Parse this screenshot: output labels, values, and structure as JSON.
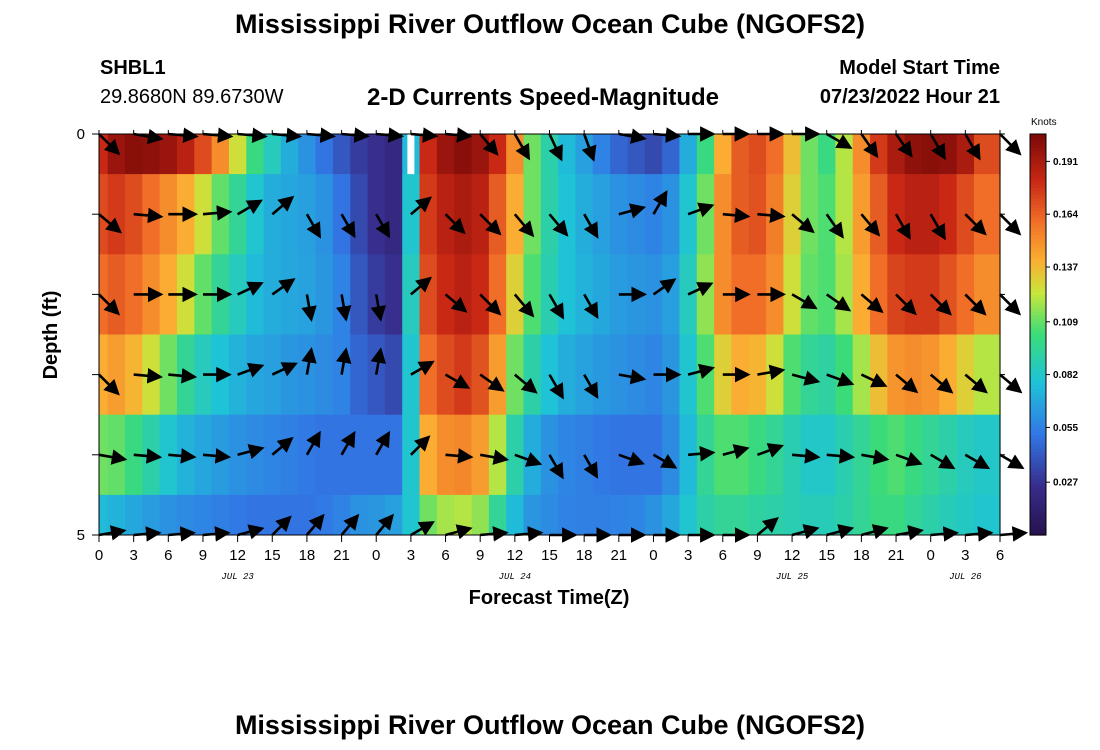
{
  "header": {
    "title": "Mississippi River Outflow Ocean Cube (NGOFS2)",
    "station_id": "SHBL1",
    "coordinates": "29.8680N  89.6730W",
    "subtitle": "2-D Currents Speed-Magnitude",
    "model_start_label": "Model Start Time",
    "model_start_value": "07/23/2022 Hour 21"
  },
  "footer": {
    "title": "Mississippi River Outflow Ocean Cube (NGOFS2)"
  },
  "chart_data": {
    "type": "heatmap",
    "title": "2-D Currents Speed-Magnitude",
    "xlabel": "Forecast Time(Z)",
    "ylabel": "Depth (ft)",
    "x_start_hour": 0,
    "x_end_hour": 78,
    "x_tick_step_hours": 3,
    "x_tick_labels": [
      "0",
      "3",
      "6",
      "9",
      "12",
      "15",
      "18",
      "21",
      "0",
      "3",
      "6",
      "9",
      "12",
      "15",
      "18",
      "21",
      "0",
      "3",
      "6",
      "9",
      "12",
      "15",
      "18",
      "21",
      "0",
      "3",
      "6"
    ],
    "date_labels": [
      {
        "label": "JUL 23",
        "hour": 12
      },
      {
        "label": "JUL 24",
        "hour": 36
      },
      {
        "label": "JUL 25",
        "hour": 60
      },
      {
        "label": "JUL 26",
        "hour": 75
      }
    ],
    "y_range": [
      0,
      5
    ],
    "y_tick_labels": [
      "0",
      "5"
    ],
    "colorbar": {
      "unit": "Knots",
      "range": [
        0.0,
        0.205
      ],
      "tick_values": [
        0.191,
        0.164,
        0.137,
        0.109,
        0.082,
        0.055,
        0.027
      ],
      "tick_labels": [
        "0.191",
        "0.164",
        "0.137",
        "0.109",
        "0.082",
        "0.055",
        "0.027"
      ]
    },
    "row_depths_ft": [
      0,
      1,
      2,
      3,
      4,
      5
    ],
    "column_hours": [
      0,
      1.5,
      3,
      4.5,
      6,
      7.5,
      9,
      10.5,
      12,
      13.5,
      15,
      16.5,
      18,
      19.5,
      21,
      22.5,
      24,
      25.5,
      27,
      28.5,
      30,
      31.5,
      33,
      34.5,
      36,
      37.5,
      39,
      40.5,
      42,
      43.5,
      45,
      46.5,
      48,
      49.5,
      51,
      52.5,
      54,
      55.5,
      57,
      58.5,
      60,
      61.5,
      63,
      64.5,
      66,
      67.5,
      69,
      70.5,
      72,
      73.5,
      75,
      76.5
    ],
    "speed_knots": [
      [
        0.18,
        0.195,
        0.2,
        0.198,
        0.195,
        0.185,
        0.17,
        0.15,
        0.125,
        0.1,
        0.085,
        0.07,
        0.06,
        0.05,
        0.04,
        0.03,
        0.025,
        0.02,
        0.075,
        0.18,
        0.195,
        0.2,
        0.195,
        0.18,
        0.15,
        0.11,
        0.09,
        0.075,
        0.065,
        0.055,
        0.045,
        0.04,
        0.035,
        0.045,
        0.07,
        0.1,
        0.14,
        0.165,
        0.17,
        0.16,
        0.135,
        0.11,
        0.1,
        0.12,
        0.15,
        0.175,
        0.19,
        0.198,
        0.2,
        0.198,
        0.19,
        0.17
      ],
      [
        0.17,
        0.175,
        0.17,
        0.16,
        0.15,
        0.14,
        0.125,
        0.108,
        0.095,
        0.08,
        0.07,
        0.068,
        0.065,
        0.06,
        0.05,
        0.035,
        0.025,
        0.02,
        0.08,
        0.175,
        0.185,
        0.19,
        0.185,
        0.165,
        0.14,
        0.11,
        0.09,
        0.078,
        0.07,
        0.065,
        0.06,
        0.058,
        0.055,
        0.06,
        0.08,
        0.11,
        0.15,
        0.165,
        0.168,
        0.155,
        0.13,
        0.11,
        0.105,
        0.12,
        0.145,
        0.165,
        0.18,
        0.185,
        0.185,
        0.18,
        0.17,
        0.16
      ],
      [
        0.16,
        0.165,
        0.16,
        0.15,
        0.14,
        0.125,
        0.108,
        0.095,
        0.085,
        0.075,
        0.07,
        0.068,
        0.066,
        0.062,
        0.055,
        0.04,
        0.03,
        0.025,
        0.085,
        0.17,
        0.18,
        0.185,
        0.18,
        0.16,
        0.13,
        0.105,
        0.088,
        0.078,
        0.072,
        0.068,
        0.064,
        0.062,
        0.06,
        0.065,
        0.085,
        0.115,
        0.15,
        0.16,
        0.16,
        0.15,
        0.125,
        0.108,
        0.105,
        0.118,
        0.14,
        0.16,
        0.172,
        0.175,
        0.175,
        0.168,
        0.16,
        0.15
      ],
      [
        0.14,
        0.145,
        0.138,
        0.125,
        0.11,
        0.095,
        0.085,
        0.078,
        0.072,
        0.068,
        0.065,
        0.062,
        0.06,
        0.058,
        0.055,
        0.045,
        0.04,
        0.035,
        0.08,
        0.16,
        0.17,
        0.175,
        0.168,
        0.145,
        0.11,
        0.09,
        0.078,
        0.07,
        0.066,
        0.063,
        0.06,
        0.058,
        0.056,
        0.062,
        0.08,
        0.105,
        0.13,
        0.14,
        0.138,
        0.125,
        0.105,
        0.095,
        0.092,
        0.102,
        0.118,
        0.135,
        0.148,
        0.15,
        0.148,
        0.14,
        0.13,
        0.12
      ],
      [
        0.11,
        0.108,
        0.1,
        0.09,
        0.08,
        0.072,
        0.068,
        0.064,
        0.06,
        0.058,
        0.056,
        0.054,
        0.052,
        0.05,
        0.05,
        0.05,
        0.05,
        0.05,
        0.08,
        0.14,
        0.15,
        0.152,
        0.145,
        0.12,
        0.09,
        0.07,
        0.06,
        0.056,
        0.054,
        0.052,
        0.05,
        0.05,
        0.05,
        0.058,
        0.075,
        0.095,
        0.105,
        0.105,
        0.1,
        0.095,
        0.088,
        0.082,
        0.082,
        0.088,
        0.095,
        0.102,
        0.105,
        0.1,
        0.095,
        0.09,
        0.085,
        0.082
      ],
      [
        0.075,
        0.072,
        0.068,
        0.064,
        0.06,
        0.058,
        0.056,
        0.054,
        0.052,
        0.05,
        0.05,
        0.05,
        0.05,
        0.052,
        0.055,
        0.06,
        0.062,
        0.065,
        0.08,
        0.11,
        0.118,
        0.12,
        0.115,
        0.095,
        0.075,
        0.062,
        0.058,
        0.055,
        0.054,
        0.054,
        0.055,
        0.056,
        0.06,
        0.068,
        0.08,
        0.09,
        0.095,
        0.095,
        0.092,
        0.09,
        0.088,
        0.086,
        0.086,
        0.09,
        0.095,
        0.1,
        0.1,
        0.095,
        0.09,
        0.086,
        0.083,
        0.08
      ]
    ],
    "missing_cells": [
      {
        "row": 0,
        "hour": 27
      }
    ],
    "vector_columns_hours": [
      0,
      3,
      6,
      9,
      12,
      15,
      18,
      21,
      24,
      27,
      30,
      33,
      36,
      39,
      42,
      45,
      48,
      51,
      54,
      57,
      60,
      63,
      66,
      69,
      72,
      75,
      78
    ],
    "vector_direction_deg": [
      [
        -45,
        -10,
        -5,
        -5,
        -5,
        -5,
        -5,
        -5,
        -5,
        -5,
        -5,
        -50,
        -60,
        -65,
        -70,
        -10,
        -5,
        0,
        0,
        0,
        0,
        -30,
        -55,
        -55,
        -60,
        -60,
        -45
      ],
      [
        -40,
        -5,
        0,
        5,
        30,
        40,
        -60,
        -60,
        -60,
        40,
        -45,
        -45,
        -50,
        -50,
        -60,
        15,
        60,
        20,
        -5,
        -5,
        -40,
        -55,
        -50,
        -60,
        -60,
        -45,
        -45
      ],
      [
        -45,
        0,
        0,
        0,
        25,
        35,
        -80,
        -80,
        -80,
        40,
        -40,
        -45,
        -50,
        -60,
        -60,
        0,
        35,
        25,
        0,
        0,
        -30,
        -35,
        -40,
        -45,
        -45,
        -45,
        -45
      ],
      [
        -45,
        -5,
        -5,
        0,
        20,
        25,
        80,
        80,
        80,
        30,
        -30,
        -35,
        -40,
        -60,
        -60,
        -10,
        0,
        15,
        0,
        10,
        -15,
        -20,
        -25,
        -40,
        -40,
        -40,
        -40
      ],
      [
        -10,
        -5,
        -5,
        -5,
        15,
        40,
        60,
        60,
        60,
        45,
        -5,
        -10,
        -20,
        -60,
        -60,
        -20,
        -30,
        5,
        15,
        20,
        -5,
        -5,
        -10,
        -20,
        -30,
        -30,
        -30
      ],
      [
        10,
        5,
        5,
        5,
        15,
        45,
        50,
        50,
        50,
        30,
        15,
        5,
        5,
        0,
        0,
        0,
        0,
        0,
        0,
        40,
        15,
        15,
        15,
        10,
        5,
        5,
        5
      ]
    ],
    "vector_magnitude_knots": [
      [
        0.18,
        0.19,
        0.2,
        0.2,
        0.19,
        0.17,
        0.13,
        0.09,
        0.07,
        0.05,
        0.03,
        0.1,
        0.19,
        0.19,
        0.15,
        0.09,
        0.07,
        0.05,
        0.04,
        0.06,
        0.1,
        0.16,
        0.15,
        0.12,
        0.18,
        0.2,
        0.19
      ],
      [
        0.17,
        0.17,
        0.16,
        0.15,
        0.13,
        0.11,
        0.08,
        0.06,
        0.06,
        0.05,
        0.09,
        0.18,
        0.18,
        0.14,
        0.09,
        0.08,
        0.07,
        0.07,
        0.06,
        0.09,
        0.15,
        0.17,
        0.13,
        0.15,
        0.18,
        0.18,
        0.17
      ],
      [
        0.16,
        0.16,
        0.15,
        0.14,
        0.11,
        0.09,
        0.07,
        0.06,
        0.06,
        0.05,
        0.1,
        0.17,
        0.18,
        0.13,
        0.09,
        0.08,
        0.07,
        0.07,
        0.07,
        0.1,
        0.15,
        0.16,
        0.12,
        0.14,
        0.17,
        0.17,
        0.16
      ],
      [
        0.14,
        0.14,
        0.12,
        0.11,
        0.09,
        0.08,
        0.07,
        0.06,
        0.06,
        0.05,
        0.09,
        0.16,
        0.16,
        0.11,
        0.08,
        0.07,
        0.07,
        0.06,
        0.06,
        0.09,
        0.13,
        0.14,
        0.11,
        0.12,
        0.15,
        0.14,
        0.13
      ],
      [
        0.11,
        0.1,
        0.09,
        0.08,
        0.07,
        0.06,
        0.06,
        0.05,
        0.05,
        0.05,
        0.08,
        0.14,
        0.13,
        0.09,
        0.06,
        0.06,
        0.05,
        0.05,
        0.06,
        0.08,
        0.1,
        0.1,
        0.09,
        0.09,
        0.1,
        0.1,
        0.09
      ],
      [
        0.07,
        0.07,
        0.06,
        0.06,
        0.06,
        0.05,
        0.05,
        0.05,
        0.05,
        0.06,
        0.07,
        0.1,
        0.11,
        0.08,
        0.06,
        0.06,
        0.05,
        0.05,
        0.06,
        0.07,
        0.09,
        0.09,
        0.09,
        0.09,
        0.09,
        0.09,
        0.08
      ]
    ]
  }
}
